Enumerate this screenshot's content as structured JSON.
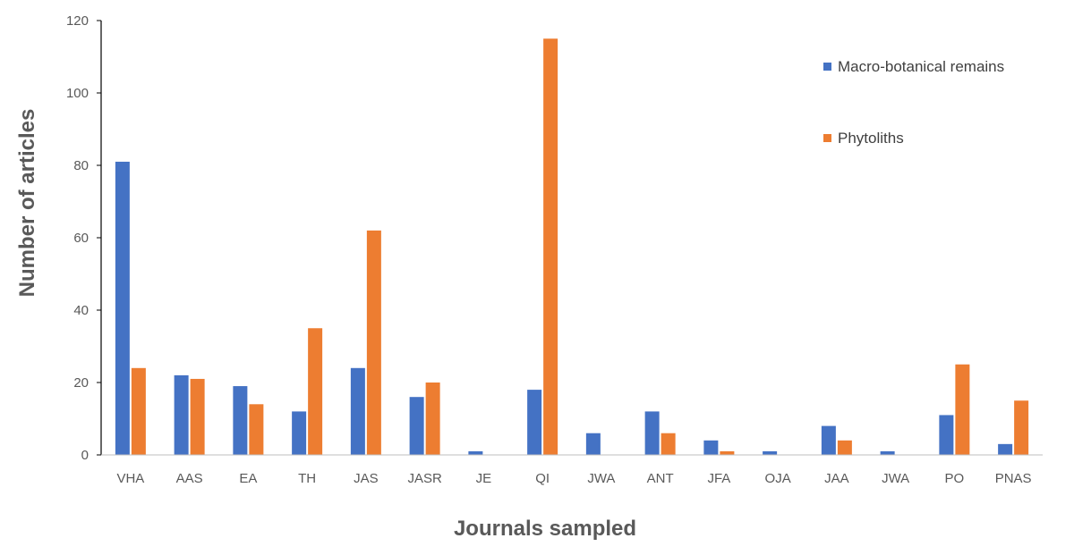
{
  "chart_data": {
    "type": "bar",
    "title": "",
    "xlabel": "Journals sampled",
    "ylabel": "Number of articles",
    "ylim": [
      0,
      120
    ],
    "yticks": [
      0,
      20,
      40,
      60,
      80,
      100,
      120
    ],
    "grid": false,
    "legend_position": "top-right",
    "categories": [
      "VHA",
      "AAS",
      "EA",
      "TH",
      "JAS",
      "JASR",
      "JE",
      "QI",
      "JWA",
      "ANT",
      "JFA",
      "OJA",
      "JAA",
      "JWA",
      "PO",
      "PNAS"
    ],
    "series": [
      {
        "name": "Macro-botanical remains",
        "color": "#4472C4",
        "values": [
          81,
          22,
          19,
          12,
          24,
          16,
          1,
          18,
          6,
          12,
          4,
          1,
          8,
          1,
          11,
          3
        ]
      },
      {
        "name": "Phytoliths",
        "color": "#ED7D31",
        "values": [
          24,
          21,
          14,
          35,
          62,
          20,
          0,
          115,
          0,
          6,
          1,
          0,
          4,
          0,
          25,
          15
        ]
      }
    ]
  }
}
